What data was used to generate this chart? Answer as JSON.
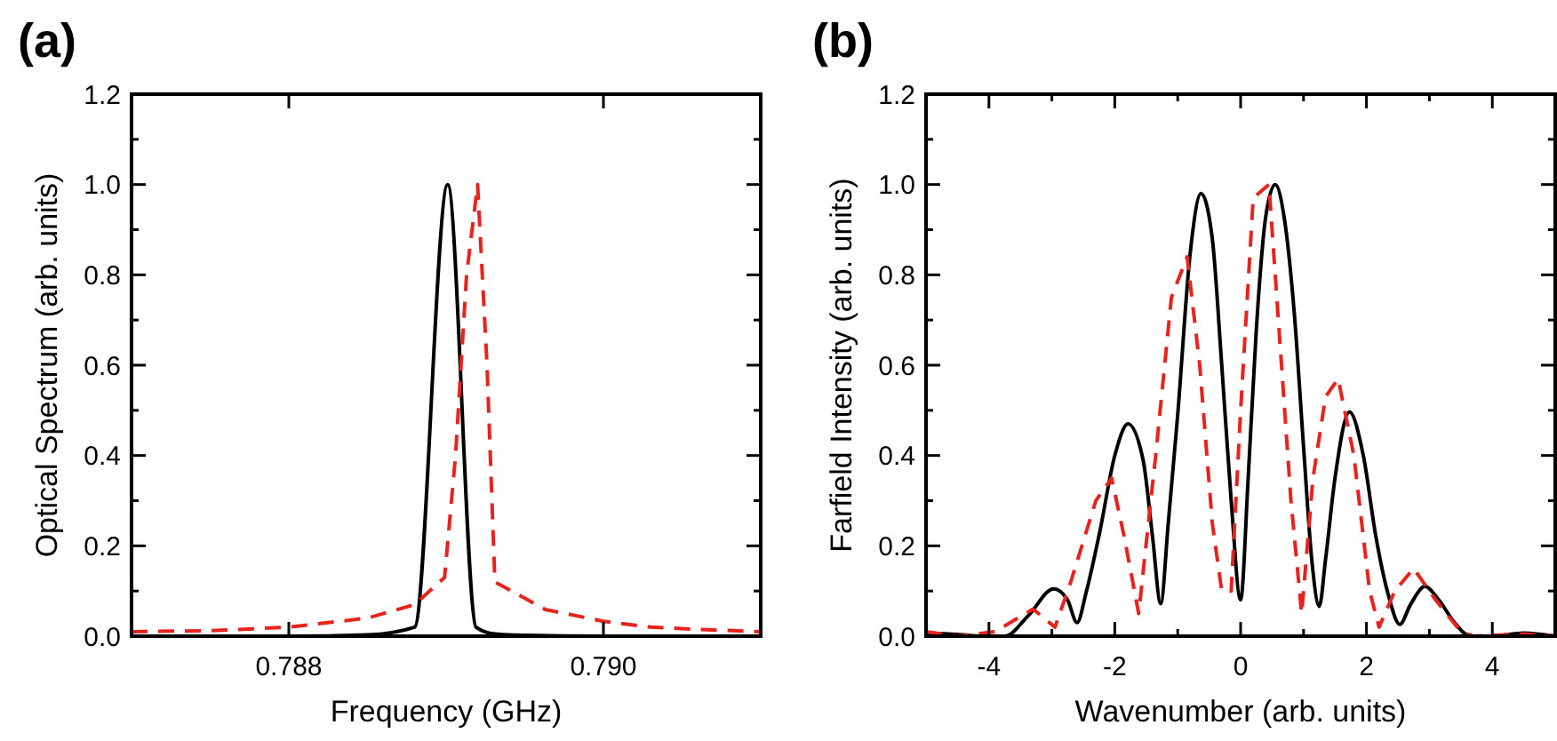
{
  "chart_data": [
    {
      "type": "line",
      "title": "(a)",
      "xlabel": "Frequency (GHz)",
      "ylabel": "Optical Spectrum (arb. units)",
      "xlim": [
        0.787,
        0.791
      ],
      "xticks": [
        {
          "value": 0.788,
          "label": "0.788"
        },
        {
          "value": 0.79,
          "label": "0.790"
        }
      ],
      "ylim": [
        0,
        1.2
      ],
      "yticks": [
        {
          "value": 0,
          "label": "0.0"
        },
        {
          "value": 0.1,
          "label": null
        },
        {
          "value": 0.2,
          "label": "0.2"
        },
        {
          "value": 0.3,
          "label": null
        },
        {
          "value": 0.4,
          "label": "0.4"
        },
        {
          "value": 0.5,
          "label": null
        },
        {
          "value": 0.6,
          "label": "0.6"
        },
        {
          "value": 0.7,
          "label": null
        },
        {
          "value": 0.8,
          "label": "0.8"
        },
        {
          "value": 0.9,
          "label": null
        },
        {
          "value": 1.0,
          "label": "1.0"
        },
        {
          "value": 1.1,
          "label": null
        },
        {
          "value": 1.2,
          "label": "1.2"
        }
      ],
      "marker": "none",
      "series": [
        {
          "color": "#000000",
          "line_style": "solid",
          "x": [
            0.787,
            0.788,
            0.7885,
            0.7888,
            0.78901,
            0.78919,
            0.78931,
            0.7895,
            0.79,
            0.791
          ],
          "values": [
            0,
            0,
            0.003,
            0.02,
            1.0,
            0.02,
            0.005,
            0.002,
            0,
            0
          ]
        },
        {
          "color": "#e8231e",
          "line_style": "dashed",
          "x": [
            0.787,
            0.7875,
            0.788,
            0.7885,
            0.7888,
            0.78899,
            0.78906,
            0.78913,
            0.7892,
            0.78926,
            0.78931,
            0.78963,
            0.79,
            0.7903,
            0.7906,
            0.791
          ],
          "values": [
            0.01,
            0.012,
            0.02,
            0.04,
            0.07,
            0.13,
            0.4,
            0.8,
            1.0,
            0.6,
            0.12,
            0.059,
            0.033,
            0.02,
            0.015,
            0.01
          ]
        }
      ]
    },
    {
      "type": "line",
      "title": "(b)",
      "xlabel": "Wavenumber (arb. units)",
      "ylabel": "Farfield Intensity (arb. units)",
      "xlim": [
        -5,
        5
      ],
      "xticks": [
        -4,
        {
          "value": -3,
          "label": null
        },
        -2,
        {
          "value": -1,
          "label": null
        },
        0,
        {
          "value": 1,
          "label": null
        },
        2,
        {
          "value": 3,
          "label": null
        },
        4
      ],
      "ylim": [
        0,
        1.2
      ],
      "yticks": [
        {
          "value": 0,
          "label": "0.0"
        },
        {
          "value": 0.1,
          "label": null
        },
        {
          "value": 0.2,
          "label": "0.2"
        },
        {
          "value": 0.3,
          "label": null
        },
        {
          "value": 0.4,
          "label": "0.4"
        },
        {
          "value": 0.5,
          "label": null
        },
        {
          "value": 0.6,
          "label": "0.6"
        },
        {
          "value": 0.7,
          "label": null
        },
        {
          "value": 0.8,
          "label": "0.8"
        },
        {
          "value": 0.9,
          "label": null
        },
        {
          "value": 1.0,
          "label": "1.0"
        },
        {
          "value": 1.1,
          "label": null
        },
        {
          "value": 1.2,
          "label": "1.2"
        }
      ],
      "marker": "none",
      "series": [
        {
          "color": "#000000",
          "line_style": "solid",
          "x": [
            -5,
            -4.5,
            -4.1,
            -3.75,
            -3.37,
            -2.97,
            -2.75,
            -2.6,
            -2.45,
            -2.24,
            -2.0,
            -1.79,
            -1.55,
            -1.4,
            -1.27,
            -1.15,
            -1.0,
            -0.8,
            -0.63,
            -0.45,
            -0.3,
            -0.15,
            0,
            0.12,
            0.25,
            0.4,
            0.55,
            0.7,
            0.85,
            1.0,
            1.13,
            1.25,
            1.35,
            1.5,
            1.73,
            1.95,
            2.15,
            2.35,
            2.53,
            2.7,
            2.93,
            3.15,
            3.4,
            3.65,
            4.0,
            4.5,
            5
          ],
          "values": [
            0.007,
            0.004,
            0,
            0,
            0.046,
            0.105,
            0.08,
            0.03,
            0.1,
            0.23,
            0.4,
            0.47,
            0.39,
            0.22,
            0.072,
            0.25,
            0.49,
            0.85,
            0.98,
            0.88,
            0.6,
            0.3,
            0.08,
            0.35,
            0.68,
            0.93,
            1.0,
            0.92,
            0.72,
            0.42,
            0.17,
            0.066,
            0.17,
            0.35,
            0.496,
            0.4,
            0.22,
            0.09,
            0.026,
            0.07,
            0.11,
            0.08,
            0.03,
            0,
            0,
            0.007,
            0
          ]
        },
        {
          "color": "#e8231e",
          "line_style": "dashed",
          "x": [
            -5,
            -4.5,
            -3.9,
            -3.3,
            -2.95,
            -2.7,
            -2.3,
            -2.05,
            -1.85,
            -1.62,
            -1.35,
            -1.1,
            -0.85,
            -0.65,
            -0.45,
            -0.3,
            -0.15,
            0,
            0.2,
            0.45,
            0.6,
            0.8,
            0.97,
            1.15,
            1.35,
            1.55,
            1.8,
            2.05,
            2.2,
            2.45,
            2.75,
            3.1,
            3.5,
            3.7,
            4.5,
            5
          ],
          "values": [
            0.01,
            0,
            0.01,
            0.06,
            0.02,
            0.12,
            0.3,
            0.35,
            0.22,
            0.05,
            0.4,
            0.75,
            0.84,
            0.6,
            0.25,
            0.1,
            0.1,
            0.5,
            0.97,
            1.0,
            0.7,
            0.3,
            0.05,
            0.35,
            0.53,
            0.57,
            0.4,
            0.1,
            0.02,
            0.1,
            0.15,
            0.08,
            0.01,
            0,
            0.005,
            0
          ]
        }
      ]
    }
  ]
}
